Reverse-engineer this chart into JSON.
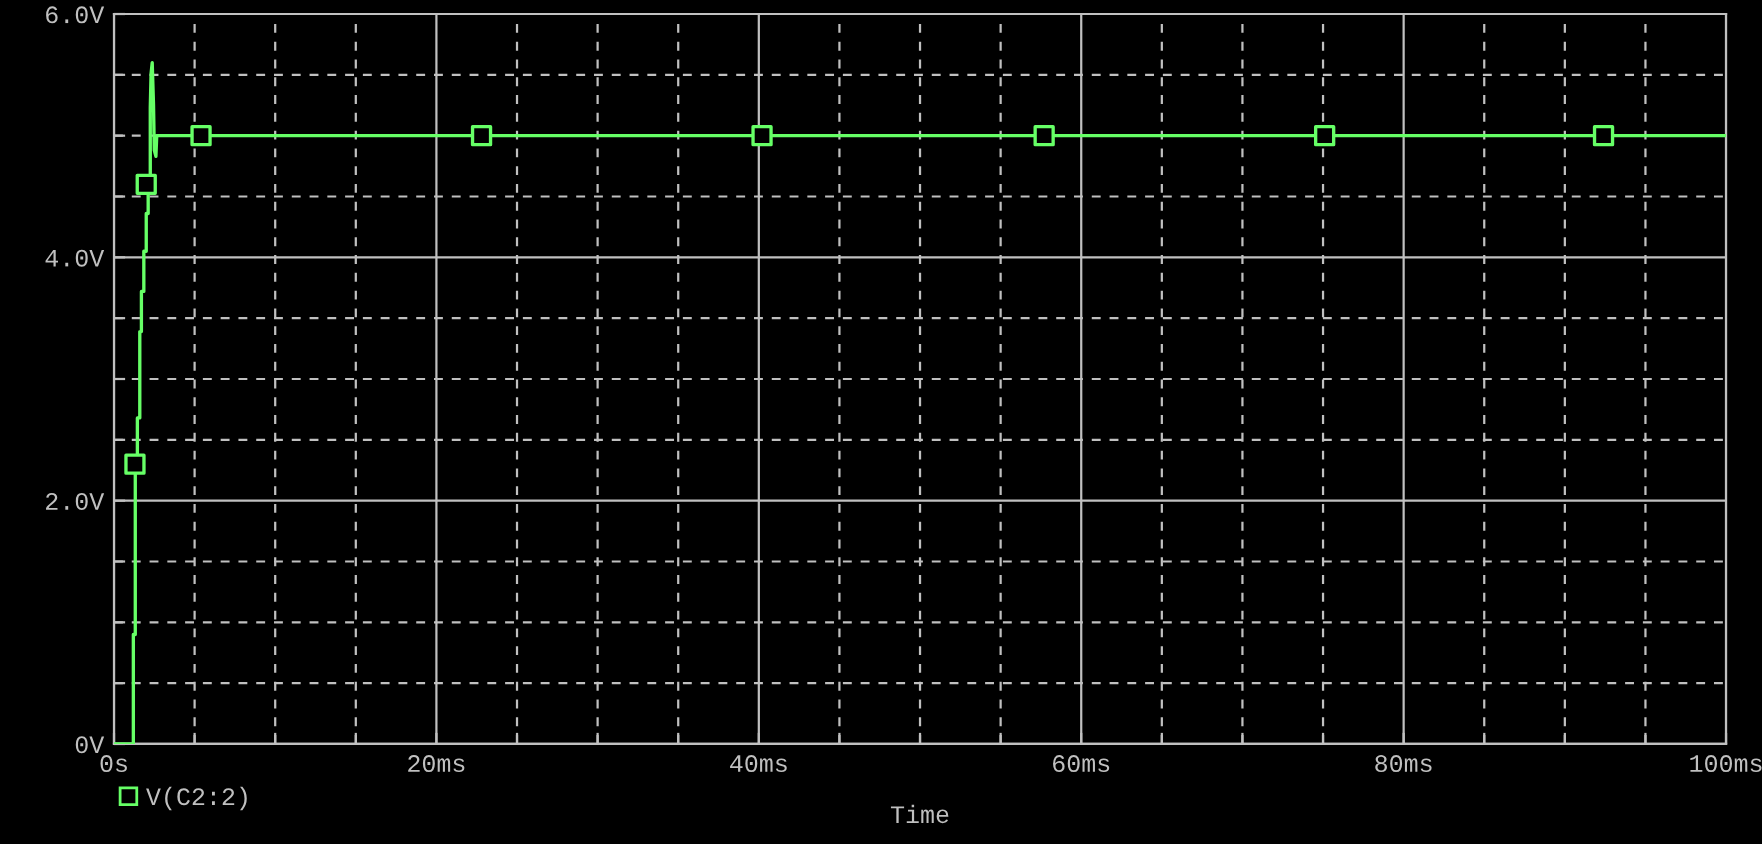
{
  "chart_data": {
    "type": "line",
    "xlabel": "Time",
    "x": [
      0,
      1.2,
      1.2,
      1.32,
      1.32,
      1.45,
      1.45,
      1.6,
      1.6,
      1.7,
      1.7,
      1.85,
      1.85,
      2.0,
      2.0,
      2.12,
      2.12,
      2.25,
      2.25,
      2.3,
      2.37,
      2.45,
      2.5,
      2.6,
      2.65,
      3.0,
      100
    ],
    "legend": "bottom left",
    "grid": true,
    "line_style": "solid",
    "xlim": [
      0,
      100
    ],
    "ylim": [
      0,
      6
    ],
    "xticks": [
      {
        "value": 0,
        "label": "0s"
      },
      {
        "value": 5,
        "label": null
      },
      {
        "value": 10,
        "label": null
      },
      {
        "value": 15,
        "label": null
      },
      {
        "value": 20,
        "label": "20ms"
      },
      {
        "value": 25,
        "label": null
      },
      {
        "value": 30,
        "label": null
      },
      {
        "value": 35,
        "label": null
      },
      {
        "value": 40,
        "label": "40ms"
      },
      {
        "value": 45,
        "label": null
      },
      {
        "value": 50,
        "label": null
      },
      {
        "value": 55,
        "label": null
      },
      {
        "value": 60,
        "label": "60ms"
      },
      {
        "value": 65,
        "label": null
      },
      {
        "value": 70,
        "label": null
      },
      {
        "value": 75,
        "label": null
      },
      {
        "value": 80,
        "label": "80ms"
      },
      {
        "value": 85,
        "label": null
      },
      {
        "value": 90,
        "label": null
      },
      {
        "value": 95,
        "label": null
      },
      {
        "value": 100,
        "label": "100ms"
      }
    ],
    "yticks": [
      {
        "value": 0,
        "label": "0V"
      },
      {
        "value": 0.5,
        "label": null
      },
      {
        "value": 1,
        "label": null
      },
      {
        "value": 1.5,
        "label": null
      },
      {
        "value": 2,
        "label": "2.0V"
      },
      {
        "value": 2.5,
        "label": null
      },
      {
        "value": 3,
        "label": null
      },
      {
        "value": 3.5,
        "label": null
      },
      {
        "value": 4,
        "label": "4.0V"
      },
      {
        "value": 4.5,
        "label": null
      },
      {
        "value": 5,
        "label": null
      },
      {
        "value": 5.5,
        "label": null
      },
      {
        "value": 6,
        "label": "6.0V"
      }
    ],
    "series": [
      {
        "name": "V(C2:2)",
        "color": "#66ff66",
        "marker": "none",
        "values": [
          0,
          0,
          0.9,
          0.9,
          2.33,
          2.33,
          2.68,
          2.68,
          3.39,
          3.39,
          3.72,
          3.72,
          4.05,
          4.05,
          4.36,
          4.36,
          4.67,
          4.67,
          5.23,
          5.51,
          5.6,
          5.26,
          4.88,
          4.83,
          5.0,
          5.0,
          5.0
        ]
      },
      {
        "type": "scatter",
        "color": "#66ff66",
        "marker": "square",
        "x": [
          1.3,
          2.0,
          5.4,
          22.8,
          40.2,
          57.7,
          75.1,
          92.4
        ],
        "values": [
          2.3,
          4.6,
          5.0,
          5.0,
          5.0,
          5.0,
          5.0,
          5.0
        ]
      }
    ]
  }
}
